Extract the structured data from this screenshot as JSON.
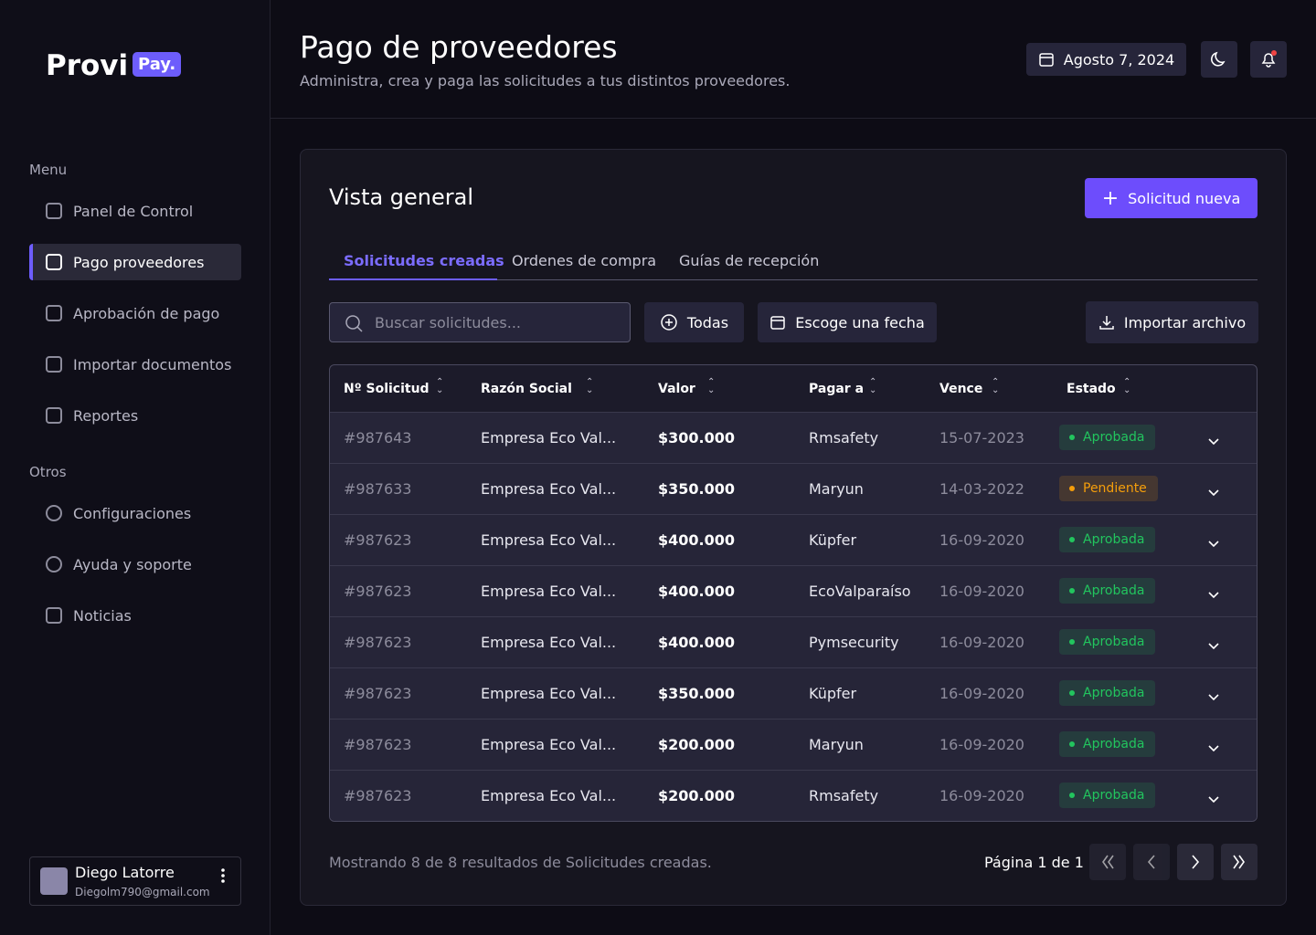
{
  "sidebar": {
    "logo": "Provi",
    "logo_badge": "Pay.",
    "menu_title": "Menu",
    "menu": [
      "Panel de Control",
      "Pago proveedores",
      "Aprobación de pago",
      "Importar documentos",
      "Reportes"
    ],
    "active": 1,
    "others_title": "Otros",
    "others": [
      "Configuraciones",
      "Ayuda y soporte",
      "Noticias"
    ],
    "user": {
      "name": "Diego Latorre",
      "email": "Diegolm790@gmail.com"
    }
  },
  "header": {
    "title": "Pago de proveedores",
    "subtitle": "Administra, crea y paga las solicitudes a tus distintos proveedores.",
    "date": "Agosto 7, 2024"
  },
  "panel": {
    "title": "Vista general",
    "new_button": "Solicitud nueva",
    "tabs": [
      "Solicitudes creadas",
      "Ordenes de compra",
      "Guías de recepción"
    ],
    "search_placeholder": "Buscar solicitudes...",
    "filter_all": "Todas",
    "filter_date": "Escoge una fecha",
    "import": "Importar archivo"
  },
  "table": {
    "columns": [
      "Nº Solicitud",
      "Razón Social",
      "Valor",
      "Pagar a",
      "Vence",
      "Estado"
    ],
    "rows": [
      {
        "id": "#987643",
        "razon": "Empresa Eco Val...",
        "valor": "$300.000",
        "pagar": "Rmsafety",
        "vence": "15-07-2023",
        "estado": "Aprobada",
        "color": "#22c55e"
      },
      {
        "id": "#987633",
        "razon": "Empresa Eco Val...",
        "valor": "$350.000",
        "pagar": "Maryun",
        "vence": "14-03-2022",
        "estado": "Pendiente",
        "color": "#f59e0b"
      },
      {
        "id": "#987623",
        "razon": "Empresa Eco Val...",
        "valor": "$400.000",
        "pagar": "Küpfer",
        "vence": "16-09-2020",
        "estado": "Aprobada",
        "color": "#22c55e"
      },
      {
        "id": "#987623",
        "razon": "Empresa Eco Val...",
        "valor": "$400.000",
        "pagar": "EcoValparaíso",
        "vence": "16-09-2020",
        "estado": "Aprobada",
        "color": "#22c55e"
      },
      {
        "id": "#987623",
        "razon": "Empresa Eco Val...",
        "valor": "$400.000",
        "pagar": "Pymsecurity",
        "vence": "16-09-2020",
        "estado": "Aprobada",
        "color": "#22c55e"
      },
      {
        "id": "#987623",
        "razon": "Empresa Eco Val...",
        "valor": "$350.000",
        "pagar": "Küpfer",
        "vence": "16-09-2020",
        "estado": "Aprobada",
        "color": "#22c55e"
      },
      {
        "id": "#987623",
        "razon": "Empresa Eco Val...",
        "valor": "$200.000",
        "pagar": "Maryun",
        "vence": "16-09-2020",
        "estado": "Aprobada",
        "color": "#22c55e"
      },
      {
        "id": "#987623",
        "razon": "Empresa Eco Val...",
        "valor": "$200.000",
        "pagar": "Rmsafety",
        "vence": "16-09-2020",
        "estado": "Aprobada",
        "color": "#22c55e"
      }
    ]
  },
  "footer": {
    "summary": "Mostrando 8 de 8 resultados de Solicitudes creadas.",
    "page": "Página 1 de 1"
  }
}
